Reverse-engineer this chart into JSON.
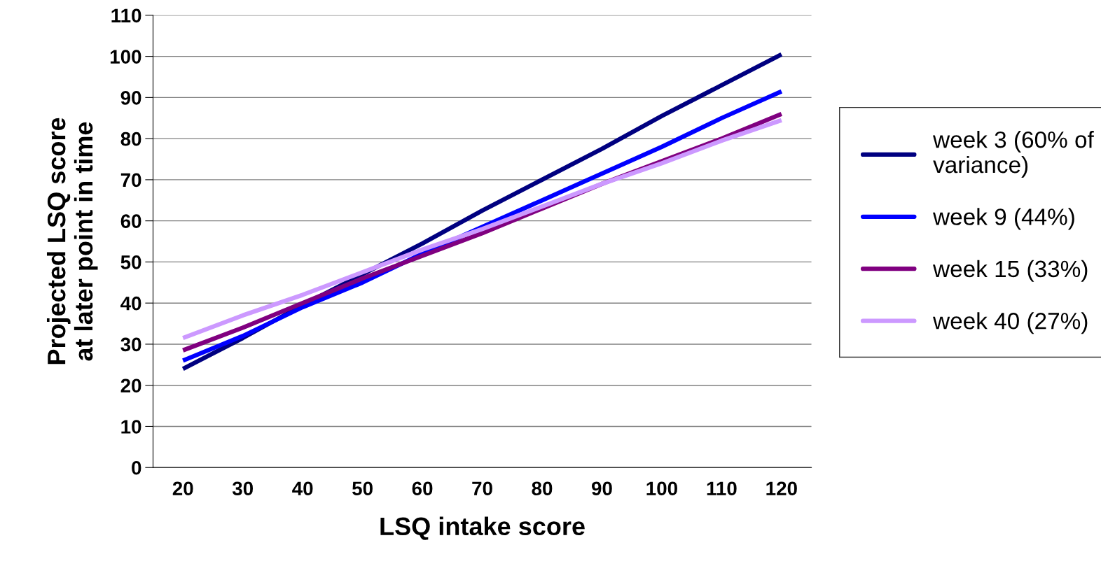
{
  "chart_data": {
    "type": "line",
    "xlabel": "LSQ intake score",
    "ylabel": "Projected LSQ score\nat later point in time",
    "categories": [
      "20",
      "30",
      "40",
      "50",
      "60",
      "70",
      "80",
      "90",
      "100",
      "110",
      "120"
    ],
    "series": [
      {
        "name": "week 3 (60% of\nvariance)",
        "color": "#000080",
        "values": [
          24,
          31.5,
          39.5,
          47,
          54.5,
          62.5,
          70,
          77.5,
          85.5,
          93,
          100.5
        ]
      },
      {
        "name": "week 9 (44%)",
        "color": "#0000ff",
        "values": [
          26,
          32,
          39,
          45,
          52,
          58.5,
          65,
          71.5,
          78,
          85,
          91.5
        ]
      },
      {
        "name": "week 15 (33%)",
        "color": "#800080",
        "values": [
          28.5,
          34,
          40,
          46,
          51.5,
          57,
          63,
          69,
          74.5,
          80,
          86
        ]
      },
      {
        "name": "week 40 (27%)",
        "color": "#cc99ff",
        "values": [
          31.5,
          37,
          42,
          47.5,
          53,
          58,
          63.5,
          69,
          74,
          79.5,
          84.5
        ]
      }
    ],
    "ylim": [
      0,
      110
    ],
    "yticks": [
      0,
      10,
      20,
      30,
      40,
      50,
      60,
      70,
      80,
      90,
      100,
      110
    ],
    "grid": "y",
    "legend": "right",
    "marker": "none",
    "line_style": "solid"
  }
}
